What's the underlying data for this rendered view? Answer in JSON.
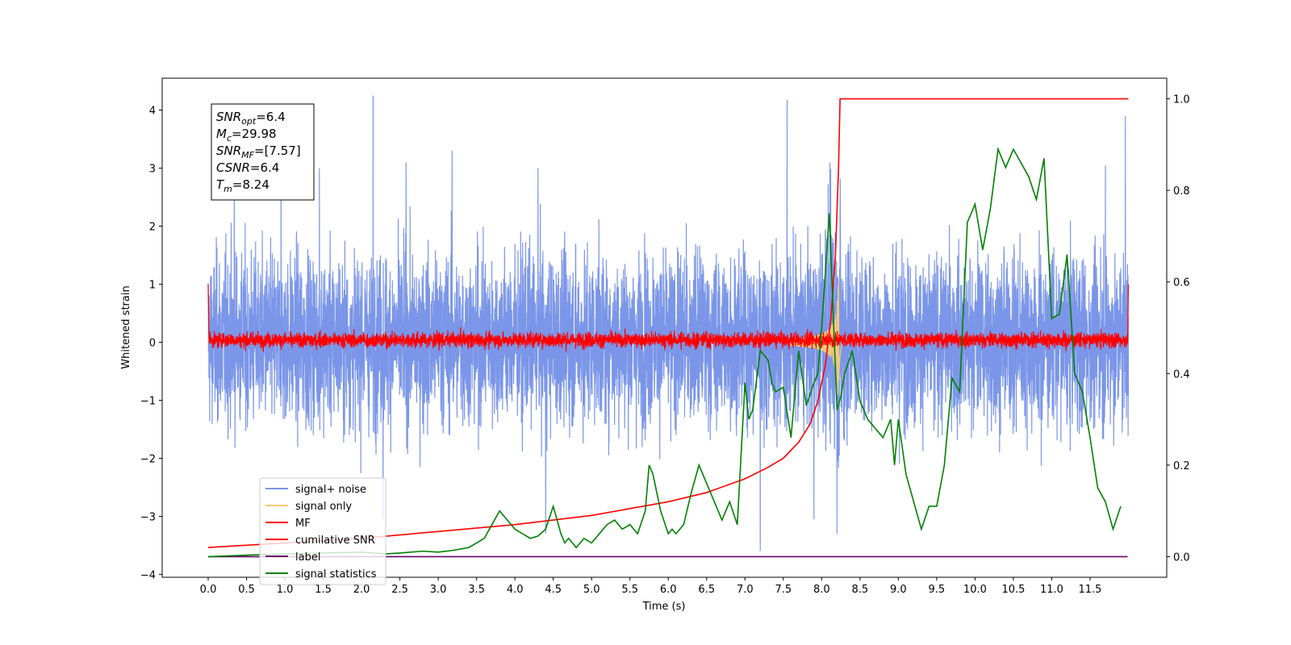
{
  "chart_data": {
    "type": "line",
    "title": "",
    "xlabel": "Time (s)",
    "ylabel": "Whitened strain",
    "y2label": "",
    "xlim": [
      -0.6,
      12.5
    ],
    "ylim": [
      -4.05,
      4.55
    ],
    "y2lim": [
      -0.045,
      1.045
    ],
    "x_ticks": [
      0.0,
      0.5,
      1.0,
      1.5,
      2.0,
      2.5,
      3.0,
      3.5,
      4.0,
      4.5,
      5.0,
      5.5,
      6.0,
      6.5,
      7.0,
      7.5,
      8.0,
      8.5,
      9.0,
      9.5,
      10.0,
      10.5,
      11.0,
      11.5
    ],
    "x_tick_labels": [
      "0.0",
      "0.5",
      "1.0",
      "1.5",
      "2.0",
      "2.5",
      "3.0",
      "3.5",
      "4.0",
      "4.5",
      "5.0",
      "5.5",
      "6.0",
      "6.5",
      "7.0",
      "7.5",
      "8.0",
      "8.5",
      "9.0",
      "9.5",
      "10.0",
      "10.5",
      "11.0",
      "11.5"
    ],
    "y_ticks": [
      -4,
      -3,
      -2,
      -1,
      0,
      1,
      2,
      3,
      4
    ],
    "y_tick_labels": [
      "−4",
      "−3",
      "−2",
      "−1",
      "0",
      "1",
      "2",
      "3",
      "4"
    ],
    "y2_ticks": [
      0.0,
      0.2,
      0.4,
      0.6,
      0.8,
      1.0
    ],
    "y2_tick_labels": [
      "0.0",
      "0.2",
      "0.4",
      "0.6",
      "0.8",
      "1.0"
    ],
    "grid": false,
    "legend_position": "lower-left",
    "annotation_lines": [
      {
        "base": "SNR",
        "sub": "opt",
        "rest": "=6.4"
      },
      {
        "base": "M",
        "sub": "c",
        "rest": "=29.98"
      },
      {
        "base": "SNR",
        "sub": "MF",
        "rest": "=[7.57]"
      },
      {
        "base": "CSNR",
        "sub": "",
        "rest": "=6.4"
      },
      {
        "base": "T",
        "sub": "m",
        "rest": "=8.24"
      }
    ],
    "series": [
      {
        "name": "signal+ noise",
        "color": "#7b96e8",
        "axis": "left",
        "kind": "noise",
        "x_range": [
          0.0,
          12.0
        ],
        "envelope": [
          -2.4,
          2.5
        ],
        "peaks": [
          [
            0.34,
            2.65
          ],
          [
            0.95,
            3.05
          ],
          [
            1.45,
            3.0
          ],
          [
            2.15,
            4.25
          ],
          [
            2.28,
            -3.05
          ],
          [
            2.58,
            3.1
          ],
          [
            3.18,
            3.3
          ],
          [
            4.3,
            3.0
          ],
          [
            4.4,
            -3.3
          ],
          [
            7.2,
            -3.6
          ],
          [
            7.55,
            4.18
          ],
          [
            7.9,
            -3.05
          ],
          [
            11.7,
            3.05
          ],
          [
            11.96,
            3.9
          ]
        ],
        "burst": {
          "x": [
            8.0,
            8.35
          ],
          "amplitude": 3.2
        }
      },
      {
        "name": "signal only",
        "color": "#f7c97a",
        "axis": "left",
        "kind": "chirp",
        "x_range": [
          7.6,
          8.3
        ],
        "peak_x": 8.22,
        "peak_amplitude": 1.4
      },
      {
        "name": "MF",
        "color": "#ff0000",
        "axis": "left",
        "kind": "noise",
        "x_range": [
          0.0,
          12.0
        ],
        "envelope": [
          -0.18,
          0.3
        ],
        "edges": [
          [
            0.0,
            1.0
          ],
          [
            12.0,
            1.0
          ]
        ]
      },
      {
        "name": "cumilative SNR",
        "color": "#ff0000",
        "axis": "right",
        "x": [
          0.0,
          1.0,
          2.0,
          3.0,
          4.0,
          5.0,
          5.5,
          6.0,
          6.5,
          7.0,
          7.3,
          7.5,
          7.7,
          7.85,
          7.95,
          8.05,
          8.12,
          8.18,
          8.22,
          8.24,
          12.0
        ],
        "values": [
          0.02,
          0.03,
          0.04,
          0.055,
          0.07,
          0.09,
          0.105,
          0.12,
          0.14,
          0.17,
          0.195,
          0.215,
          0.25,
          0.29,
          0.34,
          0.42,
          0.52,
          0.66,
          0.85,
          1.0,
          1.0
        ]
      },
      {
        "name": "label",
        "color": "#6a006a",
        "axis": "right",
        "x": [
          0.0,
          11.99
        ],
        "values": [
          0.0,
          0.0
        ]
      },
      {
        "name": "signal statistics",
        "color": "#008000",
        "axis": "right",
        "x": [
          0.0,
          0.3,
          0.6,
          1.0,
          1.5,
          2.0,
          2.3,
          2.5,
          2.8,
          3.0,
          3.2,
          3.4,
          3.6,
          3.7,
          3.8,
          3.85,
          3.9,
          4.0,
          4.1,
          4.2,
          4.3,
          4.4,
          4.5,
          4.6,
          4.65,
          4.7,
          4.8,
          4.9,
          5.0,
          5.1,
          5.2,
          5.3,
          5.4,
          5.5,
          5.6,
          5.7,
          5.75,
          5.8,
          5.9,
          6.0,
          6.05,
          6.1,
          6.2,
          6.3,
          6.4,
          6.5,
          6.6,
          6.7,
          6.8,
          6.9,
          7.0,
          7.05,
          7.1,
          7.2,
          7.3,
          7.35,
          7.4,
          7.5,
          7.6,
          7.7,
          7.8,
          7.9,
          7.95,
          8.0,
          8.1,
          8.2,
          8.25,
          8.3,
          8.4,
          8.5,
          8.6,
          8.7,
          8.8,
          8.9,
          8.95,
          9.0,
          9.1,
          9.2,
          9.3,
          9.4,
          9.5,
          9.6,
          9.7,
          9.8,
          9.9,
          10.0,
          10.1,
          10.2,
          10.3,
          10.4,
          10.5,
          10.6,
          10.7,
          10.8,
          10.9,
          11.0,
          11.1,
          11.2,
          11.3,
          11.4,
          11.5,
          11.6,
          11.7,
          11.8,
          11.9
        ],
        "values": [
          0.0,
          0.002,
          0.004,
          0.006,
          0.008,
          0.01,
          0.006,
          0.008,
          0.012,
          0.01,
          0.014,
          0.02,
          0.04,
          0.07,
          0.1,
          0.09,
          0.08,
          0.06,
          0.05,
          0.04,
          0.045,
          0.06,
          0.11,
          0.05,
          0.03,
          0.04,
          0.02,
          0.04,
          0.03,
          0.05,
          0.07,
          0.08,
          0.06,
          0.07,
          0.05,
          0.1,
          0.2,
          0.18,
          0.1,
          0.05,
          0.06,
          0.05,
          0.07,
          0.14,
          0.2,
          0.16,
          0.12,
          0.08,
          0.12,
          0.07,
          0.38,
          0.3,
          0.32,
          0.45,
          0.43,
          0.38,
          0.36,
          0.37,
          0.26,
          0.45,
          0.33,
          0.38,
          0.4,
          0.5,
          0.75,
          0.32,
          0.35,
          0.4,
          0.45,
          0.34,
          0.3,
          0.28,
          0.26,
          0.3,
          0.2,
          0.3,
          0.18,
          0.12,
          0.06,
          0.11,
          0.11,
          0.2,
          0.39,
          0.36,
          0.73,
          0.77,
          0.67,
          0.76,
          0.89,
          0.85,
          0.89,
          0.86,
          0.83,
          0.78,
          0.87,
          0.52,
          0.53,
          0.66,
          0.4,
          0.36,
          0.26,
          0.15,
          0.12,
          0.06,
          0.11
        ]
      }
    ]
  }
}
